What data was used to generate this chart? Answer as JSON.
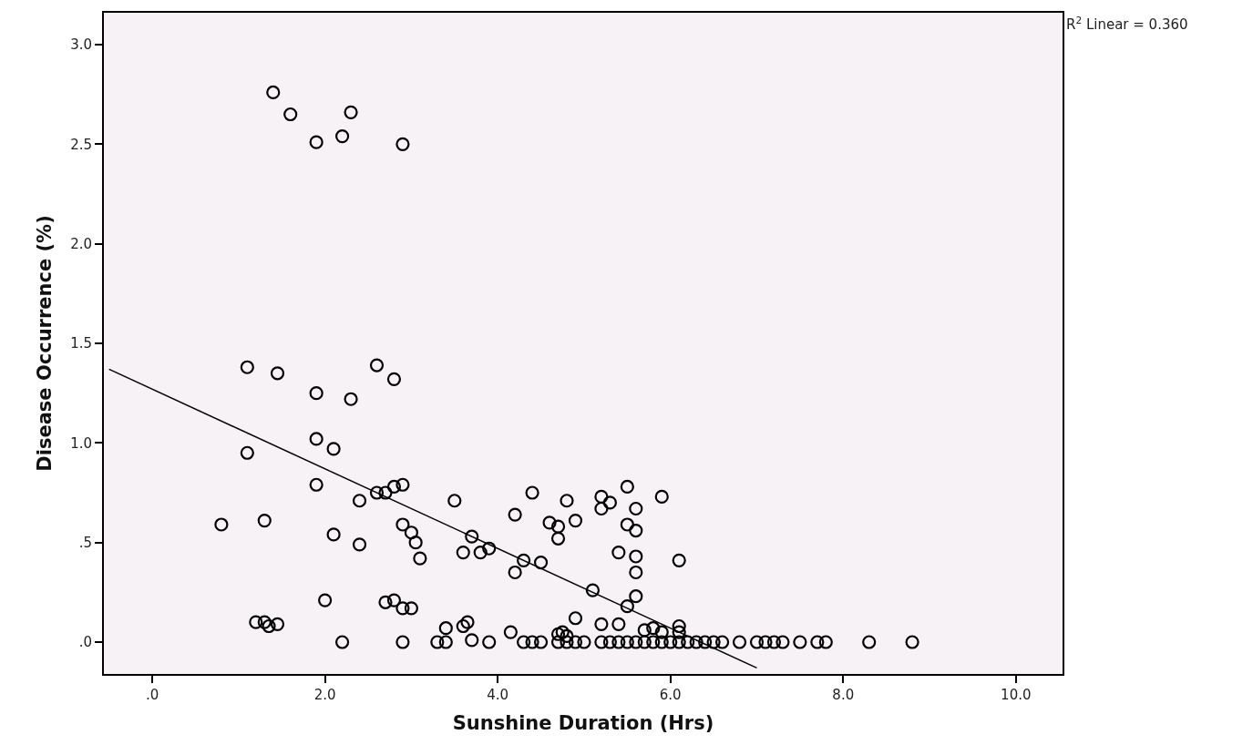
{
  "chart_data": {
    "type": "scatter",
    "xlabel": "Sunshine Duration (Hrs)",
    "ylabel": "Disease Occurrence (%)",
    "annotations": [
      "R$^{2}$ Linear = 0.360"
    ],
    "xlim": [
      -0.56,
      10.54
    ],
    "ylim": [
      -0.16,
      3.16
    ],
    "xticks": [
      {
        "value": 0,
        "label": ".0"
      },
      {
        "value": 2,
        "label": "2.0"
      },
      {
        "value": 4,
        "label": "4.0"
      },
      {
        "value": 6,
        "label": "6.0"
      },
      {
        "value": 8,
        "label": "8.0"
      },
      {
        "value": 10,
        "label": "10.0"
      }
    ],
    "yticks": [
      {
        "value": 0,
        "label": ".0"
      },
      {
        "value": 0.5,
        "label": ".5"
      },
      {
        "value": 1,
        "label": "1.0"
      },
      {
        "value": 1.5,
        "label": "1.5"
      },
      {
        "value": 2,
        "label": "2.0"
      },
      {
        "value": 2.5,
        "label": "2.5"
      },
      {
        "value": 3,
        "label": "3.0"
      }
    ],
    "grid": false,
    "series": [
      {
        "color": "#000000",
        "marker": "circle",
        "x": [
          1.4,
          1.6,
          2.3,
          1.9,
          2.2,
          2.9,
          1.1,
          1.45,
          2.6,
          2.8,
          1.9,
          2.3,
          1.1,
          1.9,
          2.1,
          1.9,
          2.4,
          2.6,
          2.7,
          2.8,
          2.9,
          0.8,
          1.3,
          2.1,
          2.4,
          2.9,
          3.0,
          3.05,
          3.1,
          2.0,
          2.7,
          2.8,
          2.9,
          3.0,
          1.2,
          1.3,
          1.35,
          1.45,
          2.2,
          2.9,
          3.5,
          3.6,
          3.7,
          3.8,
          3.9,
          3.4,
          3.6,
          3.65,
          3.7,
          3.3,
          3.4,
          3.9,
          4.2,
          4.4,
          4.2,
          4.3,
          4.5,
          4.6,
          4.7,
          4.7,
          4.8,
          4.9,
          4.9,
          4.15,
          4.7,
          4.75,
          4.8,
          5.1,
          5.2,
          5.2,
          5.3,
          5.4,
          5.5,
          5.5,
          5.6,
          5.6,
          5.6,
          5.6,
          5.5,
          5.6,
          5.9,
          5.2,
          5.4,
          5.7,
          5.8,
          5.9,
          6.1,
          6.1,
          6.1,
          4.3,
          4.4,
          4.5,
          4.7,
          4.8,
          4.9,
          5.0,
          5.2,
          5.3,
          5.4,
          5.5,
          5.6,
          5.7,
          5.8,
          5.9,
          6.0,
          6.1,
          6.2,
          6.3,
          6.4,
          6.5,
          6.6,
          6.8,
          7.0,
          7.1,
          7.2,
          7.3,
          7.5,
          7.7,
          7.8,
          8.3,
          8.8
        ],
        "values": [
          2.76,
          2.65,
          2.66,
          2.51,
          2.54,
          2.5,
          1.38,
          1.35,
          1.39,
          1.32,
          1.25,
          1.22,
          0.95,
          1.02,
          0.97,
          0.79,
          0.71,
          0.75,
          0.75,
          0.78,
          0.79,
          0.59,
          0.61,
          0.54,
          0.49,
          0.59,
          0.55,
          0.5,
          0.42,
          0.21,
          0.2,
          0.21,
          0.17,
          0.17,
          0.1,
          0.1,
          0.08,
          0.09,
          0.0,
          0.0,
          0.71,
          0.45,
          0.53,
          0.45,
          0.47,
          0.07,
          0.08,
          0.1,
          0.01,
          0.0,
          0.0,
          0.0,
          0.64,
          0.75,
          0.35,
          0.41,
          0.4,
          0.6,
          0.58,
          0.52,
          0.71,
          0.61,
          0.12,
          0.05,
          0.04,
          0.05,
          0.03,
          0.26,
          0.73,
          0.67,
          0.7,
          0.45,
          0.78,
          0.59,
          0.56,
          0.67,
          0.43,
          0.35,
          0.18,
          0.23,
          0.73,
          0.09,
          0.09,
          0.06,
          0.07,
          0.05,
          0.41,
          0.08,
          0.05,
          0,
          0,
          0,
          0,
          0,
          0,
          0,
          0,
          0,
          0,
          0,
          0,
          0,
          0,
          0,
          0,
          0,
          0,
          0,
          0,
          0,
          0,
          0,
          0,
          0,
          0,
          0,
          0,
          0,
          0,
          0,
          0
        ]
      },
      {
        "type": "line",
        "color": "#000000",
        "x": [
          -0.5,
          7.0
        ],
        "values": [
          1.37,
          -0.13
        ]
      }
    ]
  }
}
